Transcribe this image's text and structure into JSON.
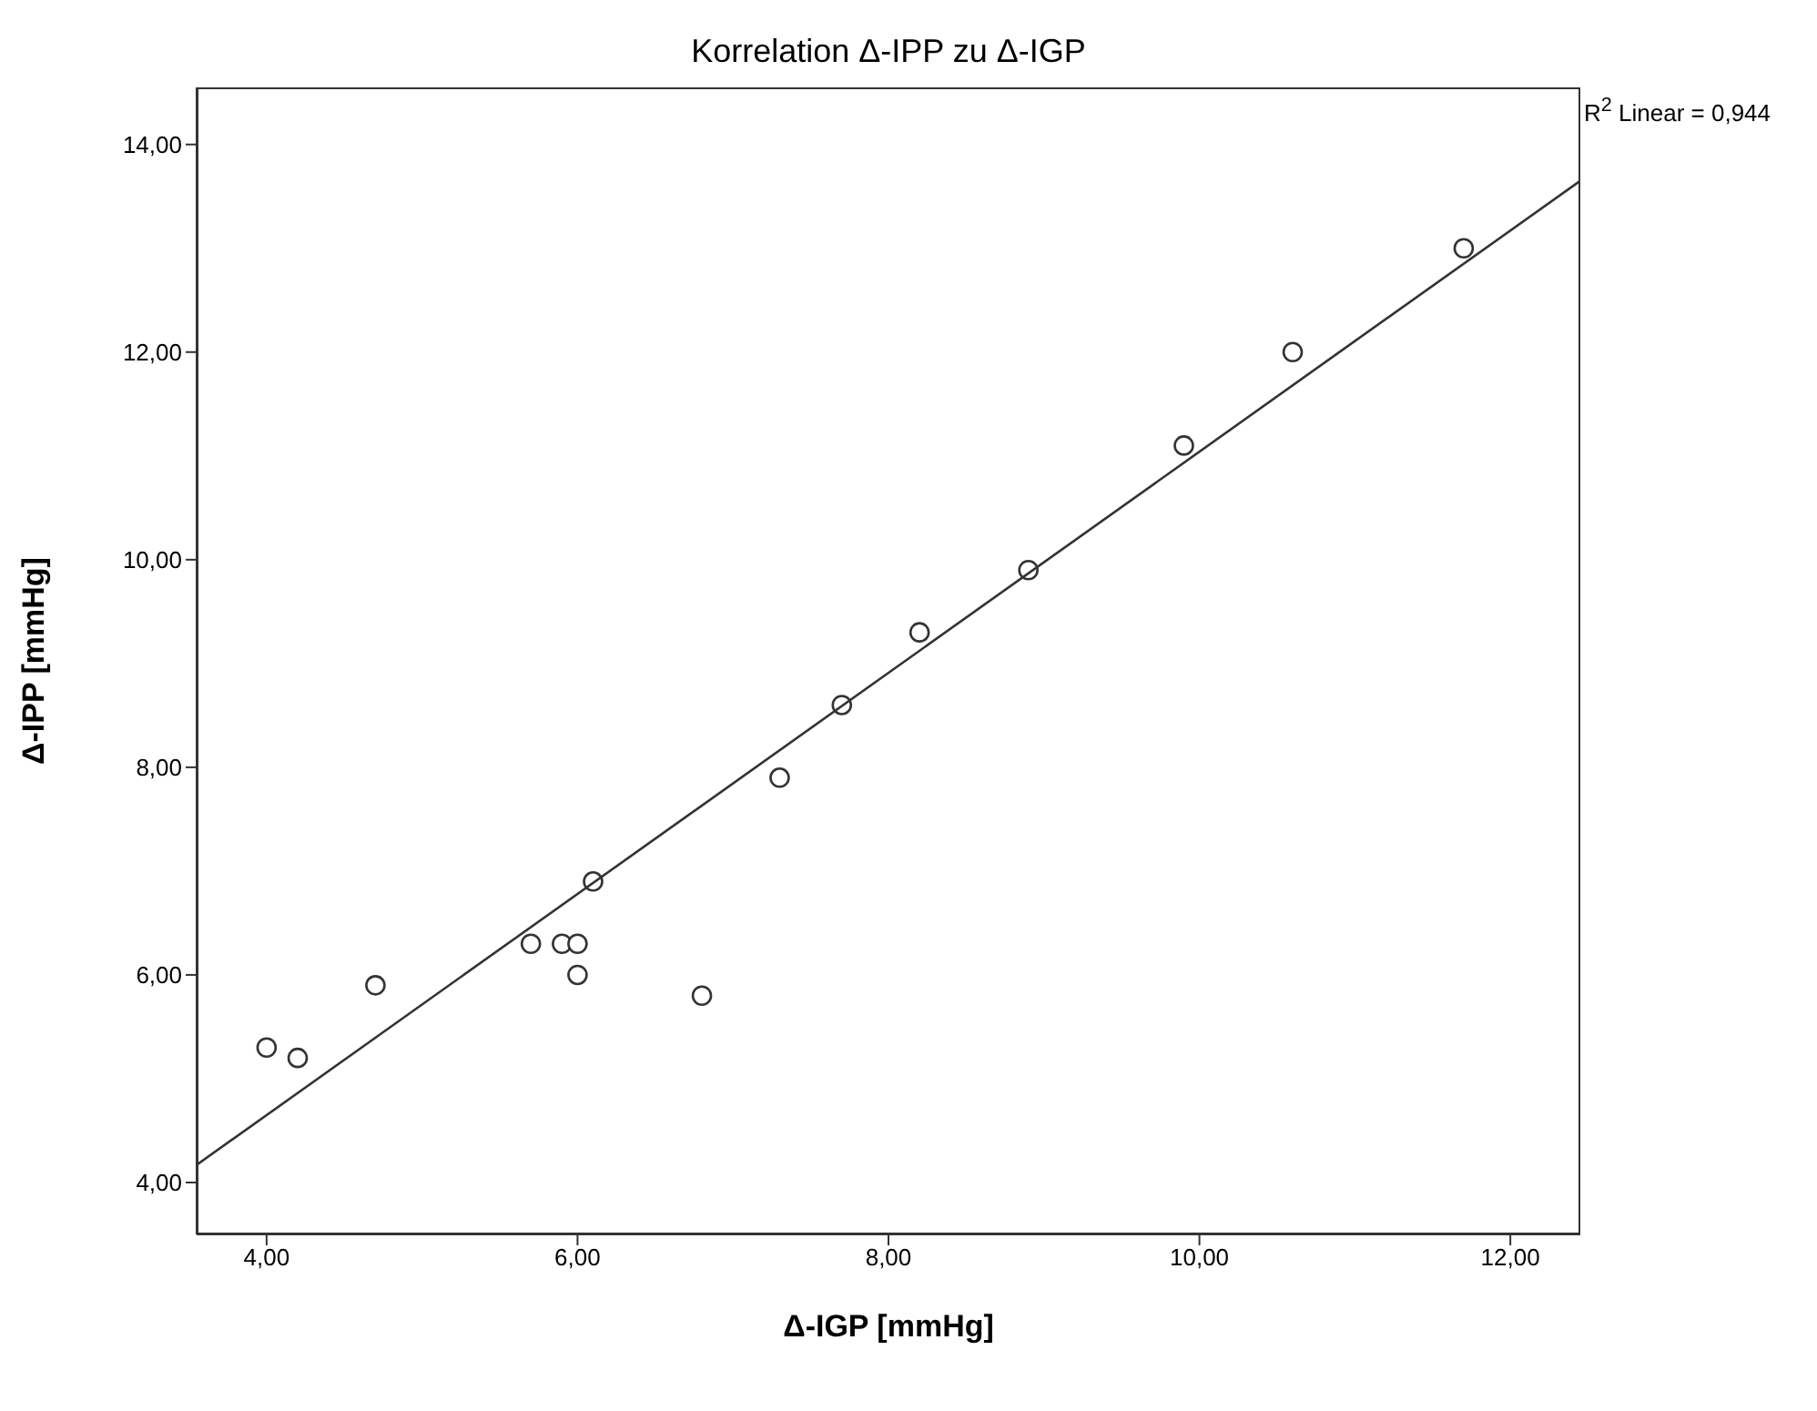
{
  "chart_data": {
    "type": "scatter",
    "title": "Korrelation Δ-IPP zu Δ-IGP",
    "xlabel": "Δ-IGP [mmHg]",
    "ylabel": "Δ-IPP [mmHg]",
    "annotations": [
      "R$^{2}$ Linear = 0,944"
    ],
    "xlim": [
      3.55,
      12.45
    ],
    "ylim": [
      3.5,
      14.55
    ],
    "xticks": [
      {
        "value": 4,
        "label": "4,00"
      },
      {
        "value": 6,
        "label": "6,00"
      },
      {
        "value": 8,
        "label": "8,00"
      },
      {
        "value": 10,
        "label": "10,00"
      },
      {
        "value": 12,
        "label": "12,00"
      }
    ],
    "yticks": [
      {
        "value": 4,
        "label": "4,00"
      },
      {
        "value": 6,
        "label": "6,00"
      },
      {
        "value": 8,
        "label": "8,00"
      },
      {
        "value": 10,
        "label": "10,00"
      },
      {
        "value": 12,
        "label": "12,00"
      },
      {
        "value": 14,
        "label": "14,00"
      }
    ],
    "grid": false,
    "legend": false,
    "marker": "circle",
    "series": [
      {
        "type": "scatter",
        "color": "#333333",
        "x": [
          4.0,
          4.2,
          4.7,
          5.7,
          5.9,
          6.0,
          6.0,
          6.1,
          6.8,
          7.3,
          7.7,
          8.2,
          8.9,
          9.9,
          10.6,
          11.7
        ],
        "values": [
          5.3,
          5.2,
          5.9,
          6.3,
          6.3,
          6.3,
          6.0,
          6.9,
          5.8,
          7.9,
          8.6,
          9.3,
          9.9,
          11.1,
          12.0,
          13.0
        ]
      },
      {
        "type": "line",
        "color": "#333333",
        "x": [
          3.55,
          12.45
        ],
        "values": [
          4.17,
          13.65
        ],
        "line_style": "solid",
        "marker": "none"
      }
    ]
  }
}
